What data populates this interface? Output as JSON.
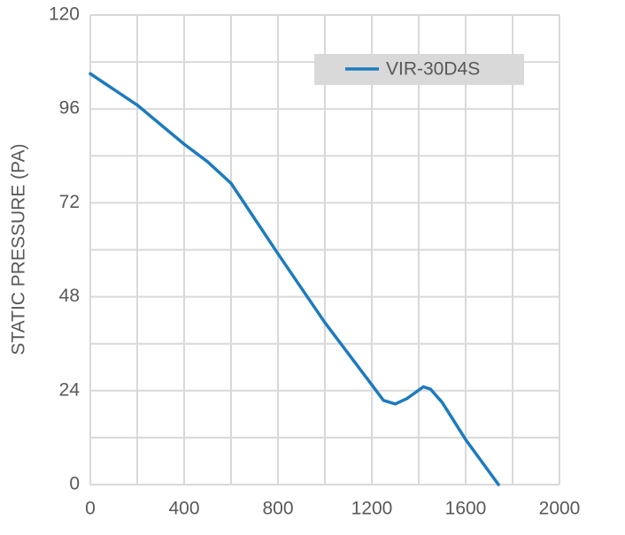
{
  "chart_data": {
    "type": "line",
    "y_label": "STATIC PRESSURE (PA)",
    "x": [
      0,
      200,
      400,
      500,
      600,
      800,
      1000,
      1200,
      1250,
      1300,
      1350,
      1420,
      1450,
      1500,
      1600,
      1740
    ],
    "series": [
      {
        "name": "VIR-30D4S",
        "color": "#1c7bbf",
        "values": [
          105,
          97,
          87,
          82.5,
          77,
          59,
          41.4,
          25.5,
          21.5,
          20.6,
          22,
          25,
          24.4,
          21,
          11.5,
          0
        ]
      }
    ],
    "xlim": [
      0,
      2000
    ],
    "xticks": [
      0,
      400,
      800,
      1200,
      1600,
      2000
    ],
    "ylim": [
      0,
      120
    ],
    "yticks": [
      0,
      24,
      48,
      72,
      96,
      120
    ],
    "minor_xticks": [
      200,
      600,
      1000,
      1400,
      1800
    ],
    "minor_yticks": [
      12,
      36,
      60,
      84,
      108
    ],
    "grid": true,
    "legend": "upper right"
  }
}
